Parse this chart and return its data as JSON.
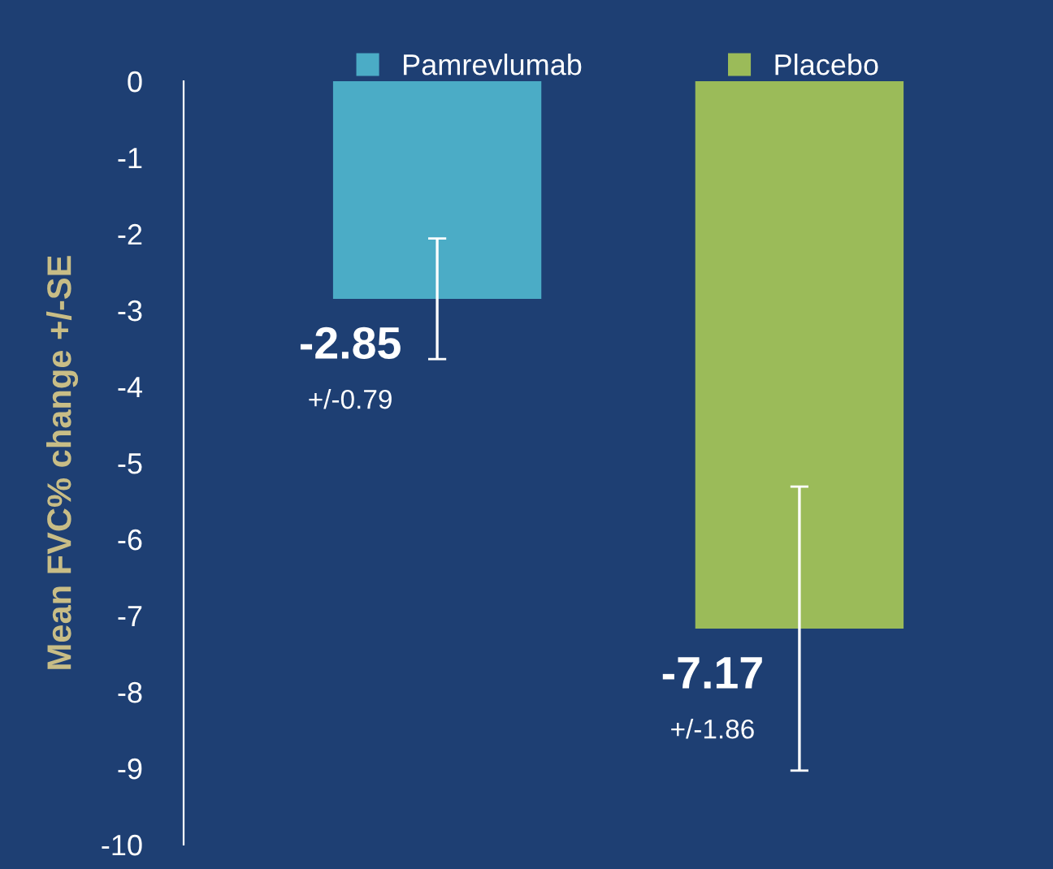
{
  "chart_data": {
    "type": "bar",
    "ylabel": "Mean FVC% change +/-SE",
    "categories": [
      null,
      null
    ],
    "series": [
      {
        "name": "Pamrevlumab",
        "color": "#4bacc6",
        "values": [
          -2.85,
          null
        ],
        "errors": [
          0.79,
          null
        ],
        "value_labels": [
          "-2.85",
          null
        ]
      },
      {
        "name": "Placebo",
        "color": "#9bbb59",
        "values": [
          null,
          -7.17
        ],
        "errors": [
          null,
          1.86
        ],
        "value_labels": [
          null,
          "-7.17"
        ]
      }
    ],
    "annotations": [
      "+/-0.79",
      "+/-1.86"
    ],
    "ylim": [
      -10,
      0
    ],
    "yticks": [
      -10,
      -9,
      -8,
      -7,
      -6,
      -5,
      -4,
      -3,
      -2,
      -1,
      0
    ],
    "stacked": true,
    "tick_labels": "y",
    "grid": false,
    "legend": "top"
  }
}
